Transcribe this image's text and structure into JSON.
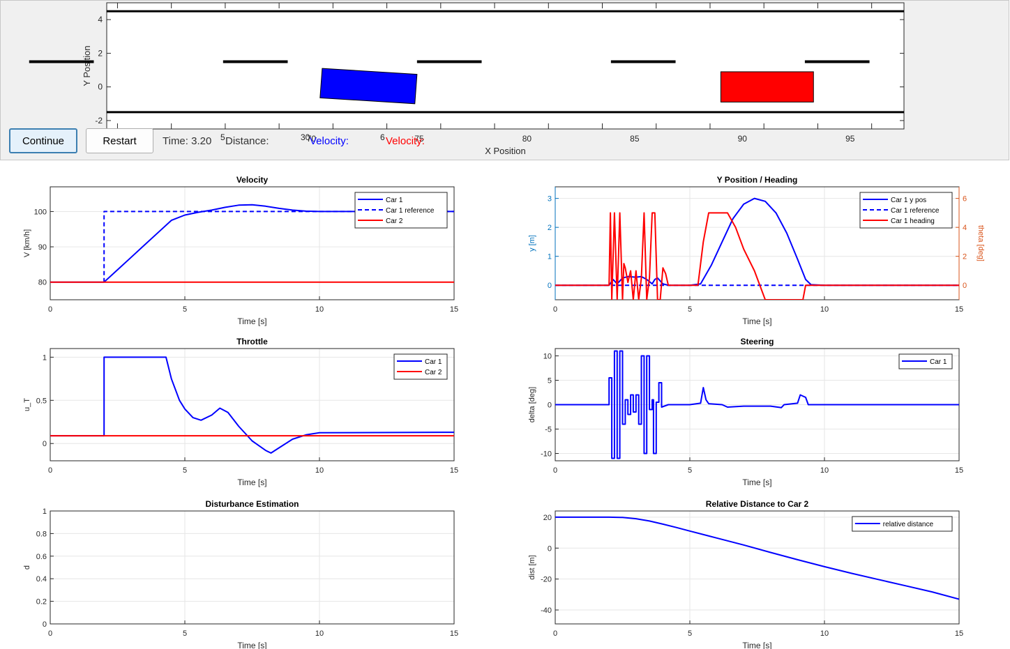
{
  "controls": {
    "continue_label": "Continue",
    "restart_label": "Restart",
    "time_label": "Time: 3.20",
    "distance_label": "Distance:",
    "car1_velocity_label": "Velocity:",
    "car2_velocity_label": "Velocity:",
    "overlap_digits": [
      "5",
      "30",
      "6"
    ]
  },
  "colors": {
    "car1": "#0000ff",
    "car2": "#ff0000",
    "yaxis_left": "#0072bd",
    "yaxis_right": "#d95319"
  },
  "road": {
    "xlabel": "X Position",
    "ylabel": "Y Position",
    "xlim": [
      60.5,
      97.5
    ],
    "ylim": [
      -2.5,
      5
    ],
    "xticks": [
      70,
      75,
      80,
      85,
      90,
      95
    ],
    "yticks": [
      -2,
      0,
      2,
      4
    ],
    "boundaries": [
      4.5,
      -1.5
    ],
    "lane_marks": [
      [
        56.9,
        59.9
      ],
      [
        65.9,
        68.9
      ],
      [
        74.9,
        77.9
      ],
      [
        83.9,
        86.9
      ],
      [
        92.9,
        95.9
      ]
    ],
    "lane_mark_y": 1.5,
    "car1_polygon": [
      [
        70.5,
        1.1
      ],
      [
        74.9,
        0.75
      ],
      [
        74.8,
        -1.0
      ],
      [
        70.4,
        -0.65
      ]
    ],
    "car2_rect": {
      "x": [
        89,
        93.3
      ],
      "y": [
        -0.9,
        0.9
      ]
    }
  },
  "chart_data": [
    {
      "type": "line",
      "title": "Velocity",
      "xlabel": "Time [s]",
      "ylabel": "V [km/h]",
      "xlim": [
        0,
        15
      ],
      "ylim": [
        75,
        107
      ],
      "xticks": [
        0,
        5,
        10,
        15
      ],
      "yticks": [
        80,
        90,
        100
      ],
      "grid": true,
      "legend": "top-right",
      "series": [
        {
          "name": "Car 1",
          "color": "#0000ff",
          "style": "solid",
          "points": [
            [
              0,
              80
            ],
            [
              2,
              80
            ],
            [
              2.5,
              83.5
            ],
            [
              3,
              87
            ],
            [
              3.5,
              90.5
            ],
            [
              4,
              94
            ],
            [
              4.5,
              97.5
            ],
            [
              5,
              99
            ],
            [
              5.5,
              99.8
            ],
            [
              6,
              100.4
            ],
            [
              6.5,
              101.2
            ],
            [
              7,
              101.8
            ],
            [
              7.5,
              101.9
            ],
            [
              8,
              101.5
            ],
            [
              8.5,
              100.9
            ],
            [
              9,
              100.4
            ],
            [
              9.5,
              100.1
            ],
            [
              10,
              100
            ],
            [
              15,
              100
            ]
          ]
        },
        {
          "name": "Car 1 reference",
          "color": "#0000ff",
          "style": "dashed",
          "points": [
            [
              2,
              80
            ],
            [
              2,
              100
            ],
            [
              15,
              100
            ]
          ]
        },
        {
          "name": "Car 2",
          "color": "#ff0000",
          "style": "solid",
          "points": [
            [
              0,
              80
            ],
            [
              15,
              80
            ]
          ]
        }
      ]
    },
    {
      "type": "line",
      "title": "Y Position / Heading",
      "xlabel": "Time [s]",
      "ylabel": "y [m]",
      "y2label": "theta [deg]",
      "xlim": [
        0,
        15
      ],
      "ylim": [
        -0.5,
        3.4
      ],
      "y2lim": [
        -1,
        6.8
      ],
      "xticks": [
        0,
        5,
        10,
        15
      ],
      "yticks": [
        0,
        1,
        2,
        3
      ],
      "y2ticks": [
        0,
        2,
        4,
        6
      ],
      "grid": true,
      "legend": "top-right",
      "series": [
        {
          "name": "Car 1 y pos",
          "color": "#0000ff",
          "style": "solid",
          "axis": "left",
          "points": [
            [
              0,
              0
            ],
            [
              2,
              0
            ],
            [
              2.15,
              0.2
            ],
            [
              2.3,
              0.05
            ],
            [
              2.5,
              0.25
            ],
            [
              2.7,
              0.3
            ],
            [
              3,
              0.28
            ],
            [
              3.2,
              0.3
            ],
            [
              3.4,
              0.2
            ],
            [
              3.6,
              0.05
            ],
            [
              3.7,
              0.2
            ],
            [
              3.8,
              0.25
            ],
            [
              4,
              0.05
            ],
            [
              4.2,
              0
            ],
            [
              5,
              0
            ],
            [
              5.4,
              0.05
            ],
            [
              5.8,
              0.7
            ],
            [
              6.2,
              1.5
            ],
            [
              6.6,
              2.3
            ],
            [
              7,
              2.8
            ],
            [
              7.4,
              3
            ],
            [
              7.8,
              2.9
            ],
            [
              8.2,
              2.5
            ],
            [
              8.6,
              1.8
            ],
            [
              9,
              0.9
            ],
            [
              9.3,
              0.2
            ],
            [
              9.5,
              0.02
            ],
            [
              10,
              0
            ],
            [
              15,
              0
            ]
          ]
        },
        {
          "name": "Car 1 reference",
          "color": "#0000ff",
          "style": "dashed",
          "axis": "left",
          "points": [
            [
              0,
              0
            ],
            [
              15,
              0
            ]
          ]
        },
        {
          "name": "Car 1 heading",
          "color": "#ff0000",
          "style": "solid",
          "axis": "right",
          "points": [
            [
              0,
              0
            ],
            [
              2,
              0
            ],
            [
              2.05,
              5
            ],
            [
              2.1,
              -1
            ],
            [
              2.2,
              5
            ],
            [
              2.3,
              -1
            ],
            [
              2.4,
              5
            ],
            [
              2.5,
              -1
            ],
            [
              2.55,
              1.5
            ],
            [
              2.6,
              1.2
            ],
            [
              2.7,
              0.2
            ],
            [
              2.8,
              1
            ],
            [
              2.9,
              -1
            ],
            [
              3,
              1
            ],
            [
              3.1,
              -1
            ],
            [
              3.2,
              0.5
            ],
            [
              3.3,
              5
            ],
            [
              3.4,
              -1
            ],
            [
              3.5,
              0.5
            ],
            [
              3.6,
              5
            ],
            [
              3.7,
              5
            ],
            [
              3.8,
              -1
            ],
            [
              3.9,
              -1
            ],
            [
              4,
              1.2
            ],
            [
              4.1,
              0.8
            ],
            [
              4.2,
              0
            ],
            [
              5,
              0
            ],
            [
              5.3,
              0
            ],
            [
              5.5,
              3
            ],
            [
              5.7,
              5
            ],
            [
              6,
              5
            ],
            [
              6.4,
              5
            ],
            [
              6.7,
              4
            ],
            [
              7,
              2.5
            ],
            [
              7.4,
              1
            ],
            [
              7.8,
              -1
            ],
            [
              9.2,
              -1
            ],
            [
              9.3,
              0
            ],
            [
              9.5,
              0
            ],
            [
              15,
              0
            ]
          ]
        }
      ]
    },
    {
      "type": "line",
      "title": "Throttle",
      "xlabel": "Time [s]",
      "ylabel": "u_T",
      "xlim": [
        0,
        15
      ],
      "ylim": [
        -0.2,
        1.1
      ],
      "xticks": [
        0,
        5,
        10,
        15
      ],
      "yticks": [
        0,
        0.5,
        1
      ],
      "grid": true,
      "legend": "top-right",
      "series": [
        {
          "name": "Car 1",
          "color": "#0000ff",
          "style": "solid",
          "points": [
            [
              0,
              0.09
            ],
            [
              2,
              0.09
            ],
            [
              2,
              1
            ],
            [
              4.3,
              1
            ],
            [
              4.5,
              0.75
            ],
            [
              4.8,
              0.5
            ],
            [
              5,
              0.4
            ],
            [
              5.3,
              0.3
            ],
            [
              5.6,
              0.27
            ],
            [
              6,
              0.33
            ],
            [
              6.3,
              0.41
            ],
            [
              6.6,
              0.36
            ],
            [
              7,
              0.2
            ],
            [
              7.5,
              0.03
            ],
            [
              8,
              -0.08
            ],
            [
              8.2,
              -0.11
            ],
            [
              8.5,
              -0.05
            ],
            [
              9,
              0.05
            ],
            [
              9.5,
              0.1
            ],
            [
              10,
              0.125
            ],
            [
              15,
              0.13
            ]
          ]
        },
        {
          "name": "Car 2",
          "color": "#ff0000",
          "style": "solid",
          "points": [
            [
              0,
              0.09
            ],
            [
              15,
              0.09
            ]
          ]
        }
      ]
    },
    {
      "type": "line",
      "title": "Steering",
      "xlabel": "Time [s]",
      "ylabel": "delta [deg]",
      "xlim": [
        0,
        15
      ],
      "ylim": [
        -11.5,
        11.5
      ],
      "xticks": [
        0,
        5,
        10,
        15
      ],
      "yticks": [
        -10,
        -5,
        0,
        5,
        10
      ],
      "grid": true,
      "legend": "top-right",
      "series": [
        {
          "name": "Car 1",
          "color": "#0000ff",
          "style": "solid",
          "points": [
            [
              0,
              0
            ],
            [
              2,
              0
            ],
            [
              2,
              5.5
            ],
            [
              2.1,
              5.5
            ],
            [
              2.1,
              -11
            ],
            [
              2.2,
              -11
            ],
            [
              2.2,
              11
            ],
            [
              2.3,
              11
            ],
            [
              2.3,
              -11
            ],
            [
              2.4,
              -11
            ],
            [
              2.4,
              11
            ],
            [
              2.5,
              11
            ],
            [
              2.5,
              -4
            ],
            [
              2.6,
              -4
            ],
            [
              2.6,
              1
            ],
            [
              2.7,
              1
            ],
            [
              2.7,
              -2
            ],
            [
              2.8,
              -2
            ],
            [
              2.8,
              2
            ],
            [
              2.9,
              2
            ],
            [
              2.9,
              -1.5
            ],
            [
              3,
              -1.5
            ],
            [
              3,
              2
            ],
            [
              3.1,
              2
            ],
            [
              3.1,
              -4
            ],
            [
              3.2,
              -4
            ],
            [
              3.2,
              10
            ],
            [
              3.3,
              10
            ],
            [
              3.3,
              -10
            ],
            [
              3.4,
              -10
            ],
            [
              3.4,
              10
            ],
            [
              3.5,
              10
            ],
            [
              3.5,
              -1
            ],
            [
              3.6,
              -1
            ],
            [
              3.6,
              1
            ],
            [
              3.65,
              1
            ],
            [
              3.65,
              -10
            ],
            [
              3.75,
              -10
            ],
            [
              3.75,
              0.5
            ],
            [
              3.85,
              0.5
            ],
            [
              3.85,
              4.5
            ],
            [
              3.95,
              4.5
            ],
            [
              3.95,
              -0.5
            ],
            [
              4.2,
              0
            ],
            [
              5,
              0
            ],
            [
              5.4,
              0.3
            ],
            [
              5.5,
              3.5
            ],
            [
              5.6,
              1
            ],
            [
              5.7,
              0.2
            ],
            [
              6.2,
              0
            ],
            [
              6.4,
              -0.5
            ],
            [
              7,
              -0.3
            ],
            [
              8,
              -0.3
            ],
            [
              8.4,
              -0.6
            ],
            [
              8.5,
              0
            ],
            [
              9,
              0.3
            ],
            [
              9.1,
              2
            ],
            [
              9.3,
              1.5
            ],
            [
              9.4,
              0
            ],
            [
              15,
              0
            ]
          ]
        }
      ]
    },
    {
      "type": "line",
      "title": "Disturbance Estimation",
      "xlabel": "Time [s]",
      "ylabel": "d",
      "xlim": [
        0,
        15
      ],
      "ylim": [
        0,
        1
      ],
      "xticks": [
        0,
        5,
        10,
        15
      ],
      "yticks": [
        0,
        0.2,
        0.4,
        0.6,
        0.8,
        1
      ],
      "grid": true,
      "series": []
    },
    {
      "type": "line",
      "title": "Relative Distance to Car 2",
      "xlabel": "Time [s]",
      "ylabel": "dist [m]",
      "xlim": [
        0,
        15
      ],
      "ylim": [
        -49,
        24
      ],
      "xticks": [
        0,
        5,
        10,
        15
      ],
      "yticks": [
        -40,
        -20,
        0,
        20
      ],
      "grid": true,
      "legend": "top-right",
      "series": [
        {
          "name": "relative distance",
          "color": "#0000ff",
          "style": "solid",
          "points": [
            [
              0,
              20
            ],
            [
              2,
              20
            ],
            [
              2.5,
              19.8
            ],
            [
              3,
              19
            ],
            [
              3.5,
              17.5
            ],
            [
              4,
              15.5
            ],
            [
              4.5,
              13.3
            ],
            [
              5,
              11
            ],
            [
              6,
              6.5
            ],
            [
              7,
              2
            ],
            [
              8,
              -2.8
            ],
            [
              9,
              -7.5
            ],
            [
              10,
              -12
            ],
            [
              11,
              -16.3
            ],
            [
              12,
              -20.3
            ],
            [
              13,
              -24.3
            ],
            [
              14,
              -28.3
            ],
            [
              15,
              -33
            ]
          ]
        }
      ]
    }
  ]
}
